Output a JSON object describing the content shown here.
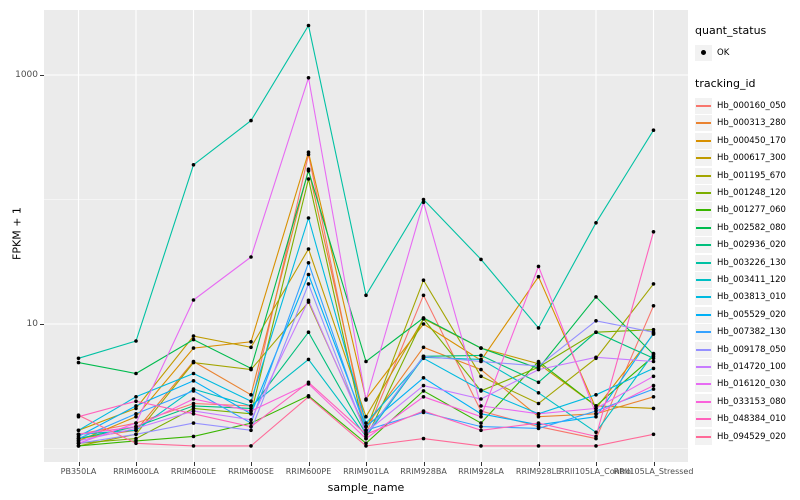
{
  "axes": {
    "y_title": "FPKM + 1",
    "x_title": "sample_name",
    "y_ticks": [
      {
        "label": "10",
        "value": 10
      },
      {
        "label": "1000",
        "value": 1000
      }
    ],
    "y_minor_values": [
      1,
      100
    ]
  },
  "legend": {
    "quant_status_title": "quant_status",
    "quant_status_ok_label": "OK",
    "tracking_title": "tracking_id"
  },
  "style": {
    "panel_bg": "#EBEBEB",
    "grid_color": "#FFFFFF",
    "point_color": "#000000",
    "tick_color": "#333333",
    "tick_label_color": "#4D4D4D"
  },
  "chart_data": {
    "type": "line",
    "title": "",
    "xlabel": "sample_name",
    "ylabel": "FPKM + 1",
    "y_scale": "log10",
    "ylim": [
      1,
      3300
    ],
    "grid": true,
    "legend_position": "right",
    "quant_status": "OK",
    "categories": [
      "PB350LA",
      "RRIM600LA",
      "RRIM600LE",
      "RRIM600SE",
      "RRIM600PE",
      "RRIM901LA",
      "RRIM928BA",
      "RRIM928LA",
      "RRIM928LE",
      "RRII105LA_Control",
      "RRII105LA_Stressed"
    ],
    "series": [
      {
        "name": "Hb_000160_050",
        "color": "#F8766D",
        "values": [
          1.3,
          1.6,
          2.3,
          2.2,
          230,
          1.3,
          17,
          2.0,
          1.5,
          1.2,
          14
        ]
      },
      {
        "name": "Hb_000313_280",
        "color": "#EA8331",
        "values": [
          1.2,
          1.4,
          5.0,
          2.7,
          175,
          1.5,
          6.5,
          4.3,
          1.8,
          1.9,
          2.6
        ]
      },
      {
        "name": "Hb_000450_170",
        "color": "#D89000",
        "values": [
          1.15,
          1.8,
          6.4,
          7.2,
          240,
          2.5,
          10,
          5.1,
          24,
          2.1,
          8.3
        ]
      },
      {
        "name": "Hb_000617_300",
        "color": "#C09B00",
        "values": [
          1.4,
          2.1,
          8.0,
          6.5,
          40,
          1.8,
          11,
          6.4,
          4.8,
          2.2,
          2.1
        ]
      },
      {
        "name": "Hb_001195_670",
        "color": "#A3A500",
        "values": [
          1.05,
          1.3,
          4.9,
          4.3,
          15,
          1.4,
          22.5,
          3.8,
          2.3,
          5.3,
          21
        ]
      },
      {
        "name": "Hb_001248_120",
        "color": "#7CAE00",
        "values": [
          1.1,
          1.2,
          2.1,
          1.9,
          146,
          1.2,
          11,
          2.9,
          4.5,
          8.6,
          9.0
        ]
      },
      {
        "name": "Hb_001277_060",
        "color": "#39B600",
        "values": [
          1.05,
          1.15,
          1.25,
          1.6,
          2.65,
          1.1,
          2.9,
          1.6,
          5.0,
          2.2,
          5.5
        ]
      },
      {
        "name": "Hb_002582_080",
        "color": "#00BB4E",
        "values": [
          4.9,
          4.0,
          7.5,
          4.4,
          170,
          5.0,
          11.2,
          6.4,
          4.4,
          16.5,
          5.7
        ]
      },
      {
        "name": "Hb_002936_020",
        "color": "#00BF7D",
        "values": [
          1.2,
          1.5,
          2.2,
          2.1,
          8.6,
          1.3,
          5.5,
          5.6,
          3.4,
          8.6,
          5.3
        ]
      },
      {
        "name": "Hb_003226_130",
        "color": "#00C1A3",
        "values": [
          5.3,
          7.3,
          190,
          430,
          2500,
          17,
          100,
          33,
          9.3,
          65,
          360
        ]
      },
      {
        "name": "Hb_003411_120",
        "color": "#00BFC4",
        "values": [
          1.3,
          1.4,
          3.0,
          2.2,
          5.2,
          1.25,
          5.4,
          5.2,
          2.8,
          1.35,
          5.8
        ]
      },
      {
        "name": "Hb_003813_010",
        "color": "#00BAE0",
        "values": [
          1.4,
          2.6,
          4.0,
          2.4,
          71,
          1.6,
          5.3,
          2.95,
          1.9,
          2.7,
          4.4
        ]
      },
      {
        "name": "Hb_005529_020",
        "color": "#00B0F6",
        "values": [
          1.25,
          2.2,
          3.5,
          1.9,
          25,
          1.5,
          3.7,
          1.9,
          1.55,
          1.8,
          8.4
        ]
      },
      {
        "name": "Hb_007382_130",
        "color": "#35A2FF",
        "values": [
          1.2,
          1.9,
          2.9,
          1.6,
          31,
          1.4,
          1.95,
          1.5,
          1.45,
          2.0,
          3.0
        ]
      },
      {
        "name": "Hb_009178_050",
        "color": "#9590FF",
        "values": [
          1.1,
          1.3,
          1.6,
          1.4,
          21,
          1.3,
          5.5,
          5.0,
          4.6,
          10.6,
          8.6
        ]
      },
      {
        "name": "Hb_014720_100",
        "color": "#C77CFF",
        "values": [
          1.15,
          1.45,
          2.0,
          1.7,
          15.5,
          1.35,
          3.2,
          2.5,
          4.3,
          5.4,
          5.0
        ]
      },
      {
        "name": "Hb_016120_030",
        "color": "#E76BF3",
        "values": [
          1.1,
          1.6,
          15.6,
          34.5,
          950,
          2.45,
          95,
          2.2,
          1.9,
          2.1,
          3.8
        ]
      },
      {
        "name": "Hb_033153_080",
        "color": "#FA62DB",
        "values": [
          1.3,
          1.5,
          2.5,
          2.0,
          3.3,
          1.2,
          2.6,
          1.8,
          29,
          1.9,
          3.2
        ]
      },
      {
        "name": "Hb_048384_010",
        "color": "#FF62BC",
        "values": [
          1.8,
          2.4,
          1.9,
          1.5,
          3.4,
          1.3,
          2.0,
          1.4,
          1.6,
          1.25,
          55
        ]
      },
      {
        "name": "Hb_094529_020",
        "color": "#FF6A98",
        "values": [
          1.85,
          1.1,
          1.05,
          1.05,
          2.6,
          1.05,
          1.2,
          1.05,
          1.05,
          1.05,
          1.3
        ]
      }
    ]
  }
}
